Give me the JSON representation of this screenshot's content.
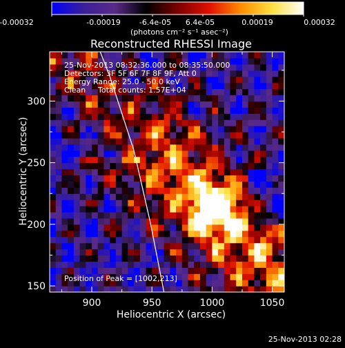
{
  "colorbar": {
    "ticks": [
      "-0.00032",
      "-0.00019",
      "-6.4e-05",
      "6.4e-05",
      "0.00019",
      "0.00032"
    ],
    "units": "(photons cm⁻² s⁻¹ asec⁻²)",
    "colors": [
      "#0000ff",
      "#3a1f9a",
      "#5a2a88",
      "#000000",
      "#7a0000",
      "#e01000",
      "#ff8c00",
      "#ffe040",
      "#ffffff"
    ]
  },
  "annotations": {
    "time_range": "25-Nov-2013 08:32:36.000 to 08:35:50.000",
    "detectors": "Detectors: 3F 5F 6F 7F 8F 9F, Att 0",
    "energy": "Energy Range: 25.0 - 50.0 keV",
    "clean_label": "Clean",
    "total_counts": "Total counts: 1.57E+04",
    "peak": "Position of Peak = [1002,213]"
  },
  "footer_timestamp": "25-Nov-2013 02:28",
  "chart_data": {
    "type": "heatmap",
    "title": "Reconstructed RHESSI Image",
    "xlabel": "Heliocentric X (arcsec)",
    "ylabel": "Heliocentric Y (arcsec)",
    "xlim": [
      865,
      1060
    ],
    "ylim": [
      145,
      340
    ],
    "xticks": [
      900,
      950,
      1000,
      1050
    ],
    "yticks": [
      150,
      200,
      250,
      300
    ],
    "peak": [
      1002,
      213
    ],
    "limb_curve": [
      [
        907,
        340
      ],
      [
        915,
        320
      ],
      [
        925,
        290
      ],
      [
        935,
        260
      ],
      [
        942,
        230
      ],
      [
        949,
        200
      ],
      [
        955,
        170
      ],
      [
        960,
        145
      ]
    ]
  }
}
